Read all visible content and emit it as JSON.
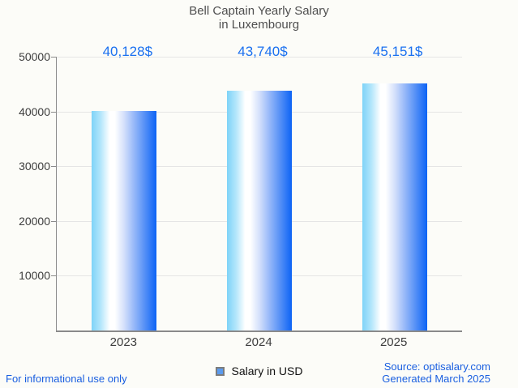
{
  "title": {
    "line1": "Bell Captain Yearly Salary",
    "line2": "in Luxembourg"
  },
  "chart_data": {
    "type": "bar",
    "title": "Bell Captain Yearly Salary in Luxembourg",
    "categories": [
      "2023",
      "2024",
      "2025"
    ],
    "values": [
      40128,
      43740,
      45151
    ],
    "value_labels": [
      "40,128$",
      "43,740$",
      "45,151$"
    ],
    "series": [
      {
        "name": "Salary in USD",
        "values": [
          40128,
          43740,
          45151
        ]
      }
    ],
    "xlabel": "",
    "ylabel": "",
    "ylim": [
      0,
      50000
    ],
    "yticks": [
      10000,
      20000,
      30000,
      40000,
      50000
    ],
    "grid": true,
    "legend_position": "bottom-center",
    "bar_gradient": [
      "#7ed3f8",
      "#ffffff",
      "#0c63f5"
    ]
  },
  "legend": {
    "label": "Salary in USD",
    "marker_color": "#5b9bee",
    "marker_border": "#7c7c7c"
  },
  "footer": {
    "left": "For informational use only",
    "source": "Source: optisalary.com",
    "generated": "Generated March 2025"
  },
  "colors": {
    "background": "#fcfcf8",
    "title_text": "#4f4f4f",
    "axis_text": "#3d3d3d",
    "grid_line": "#e5e5e5",
    "axis_line": "#8a8a8a",
    "value_text": "#1a70f0",
    "footer_text": "#1a5fe0"
  }
}
